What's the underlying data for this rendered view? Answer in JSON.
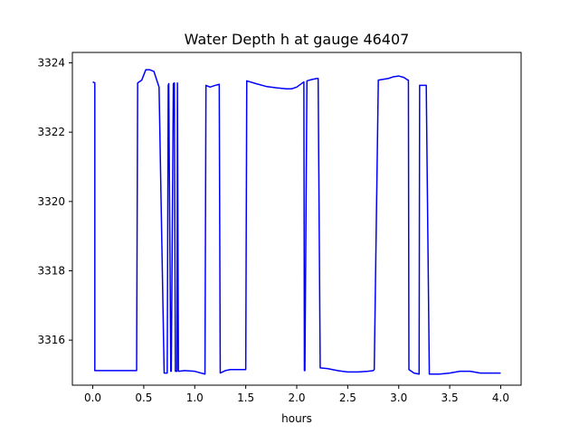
{
  "chart_data": {
    "type": "line",
    "title": "Water Depth h at gauge 46407",
    "xlabel": "hours",
    "ylabel": "",
    "xlim": [
      -0.2,
      4.2
    ],
    "ylim": [
      3314.7,
      3324.3
    ],
    "xticks": [
      0.0,
      0.5,
      1.0,
      1.5,
      2.0,
      2.5,
      3.0,
      3.5,
      4.0
    ],
    "xtick_labels": [
      "0.0",
      "0.5",
      "1.0",
      "1.5",
      "2.0",
      "2.5",
      "3.0",
      "3.5",
      "4.0"
    ],
    "yticks": [
      3316,
      3318,
      3320,
      3322,
      3324
    ],
    "ytick_labels": [
      "3316",
      "3318",
      "3320",
      "3322",
      "3324"
    ],
    "grid": false,
    "line_color": "#0000ff",
    "series": [
      {
        "x": [
          0.0,
          0.02,
          0.02,
          0.43,
          0.44,
          0.48,
          0.52,
          0.56,
          0.6,
          0.65,
          0.7,
          0.73,
          0.74,
          0.745,
          0.765,
          0.77,
          0.79,
          0.8,
          0.81,
          0.825,
          0.83,
          0.84,
          0.9,
          1.0,
          1.1,
          1.11,
          1.15,
          1.2,
          1.24,
          1.25,
          1.3,
          1.35,
          1.4,
          1.5,
          1.51,
          1.6,
          1.7,
          1.8,
          1.9,
          1.95,
          2.0,
          2.07,
          2.075,
          2.08,
          2.1,
          2.15,
          2.2,
          2.21,
          2.23,
          2.3,
          2.4,
          2.5,
          2.6,
          2.7,
          2.75,
          2.76,
          2.8,
          2.9,
          2.95,
          3.0,
          3.05,
          3.09,
          3.095,
          3.1,
          3.15,
          3.2,
          3.205,
          3.26,
          3.27,
          3.3,
          3.4,
          3.5,
          3.6,
          3.7,
          3.8,
          3.9,
          4.0
        ],
        "y": [
          3323.45,
          3323.42,
          3315.12,
          3315.12,
          3323.42,
          3323.5,
          3323.8,
          3323.8,
          3323.75,
          3323.3,
          3315.05,
          3315.05,
          3323.35,
          3323.4,
          3315.1,
          3315.1,
          3323.4,
          3323.42,
          3315.1,
          3315.1,
          3323.42,
          3315.1,
          3315.12,
          3315.1,
          3315.02,
          3323.35,
          3323.3,
          3323.35,
          3323.38,
          3315.05,
          3315.12,
          3315.15,
          3315.15,
          3315.15,
          3323.48,
          3323.4,
          3323.32,
          3323.28,
          3323.25,
          3323.25,
          3323.3,
          3323.45,
          3315.12,
          3315.12,
          3323.48,
          3323.52,
          3323.55,
          3323.55,
          3315.2,
          3315.18,
          3315.12,
          3315.08,
          3315.08,
          3315.1,
          3315.12,
          3315.15,
          3323.5,
          3323.55,
          3323.6,
          3323.62,
          3323.58,
          3323.5,
          3323.5,
          3315.15,
          3315.05,
          3315.02,
          3323.35,
          3323.35,
          3323.35,
          3315.02,
          3315.02,
          3315.05,
          3315.1,
          3315.1,
          3315.05,
          3315.05,
          3315.05
        ]
      }
    ]
  }
}
